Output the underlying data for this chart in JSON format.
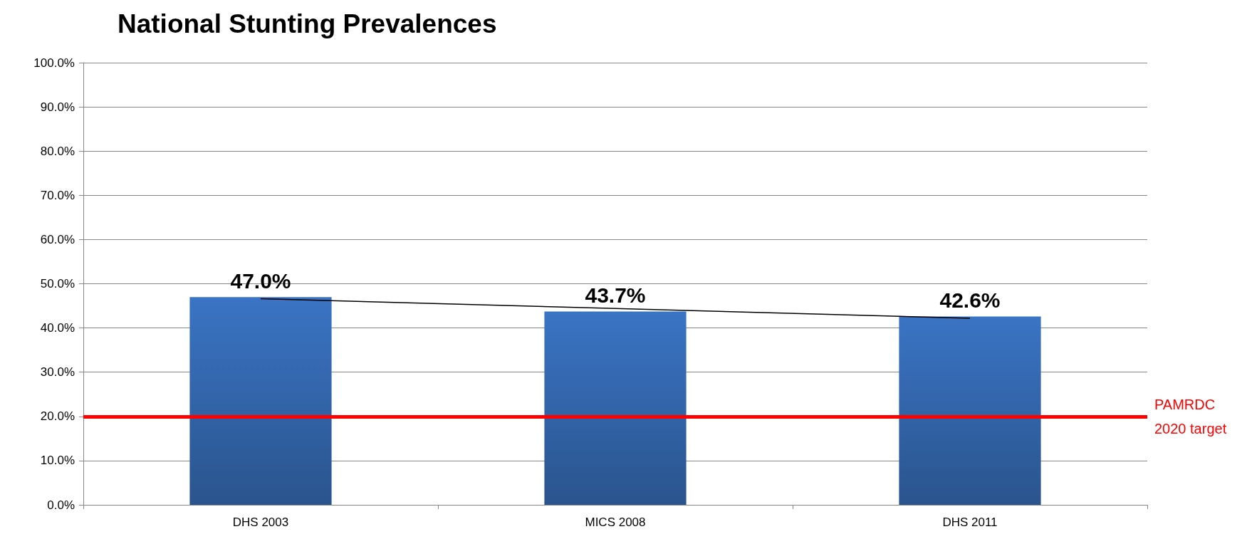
{
  "chart_data": {
    "type": "bar",
    "title": "National Stunting Prevalences",
    "categories": [
      "DHS 2003",
      "MICS 2008",
      "DHS 2011"
    ],
    "series": [
      {
        "color": "#3a74c4",
        "values": [
          47.0,
          43.7,
          42.6
        ],
        "value_labels": [
          "47.0%",
          "43.7%",
          "42.6%"
        ]
      },
      {
        "type": "line",
        "color": "#000000",
        "x": [
          "DHS 2003",
          "MICS 2008",
          "DHS 2011"
        ],
        "values": [
          46.6,
          44.4,
          42.2
        ],
        "marker": "none"
      }
    ],
    "ylim": [
      0,
      100
    ],
    "yticks": [
      {
        "value": 0,
        "label": "0.0%"
      },
      {
        "value": 10,
        "label": "10.0%"
      },
      {
        "value": 20,
        "label": "20.0%"
      },
      {
        "value": 30,
        "label": "30.0%"
      },
      {
        "value": 40,
        "label": "40.0%"
      },
      {
        "value": 50,
        "label": "50.0%"
      },
      {
        "value": 60,
        "label": "60.0%"
      },
      {
        "value": 70,
        "label": "70.0%"
      },
      {
        "value": 80,
        "label": "80.0%"
      },
      {
        "value": 90,
        "label": "90.0%"
      },
      {
        "value": 100,
        "label": "100.0%"
      }
    ],
    "ref_lines": [
      {
        "axis": "y",
        "value": 20,
        "label": "PAMRDC\n2020 target",
        "color": "#ff0000"
      }
    ],
    "grid": "y"
  }
}
